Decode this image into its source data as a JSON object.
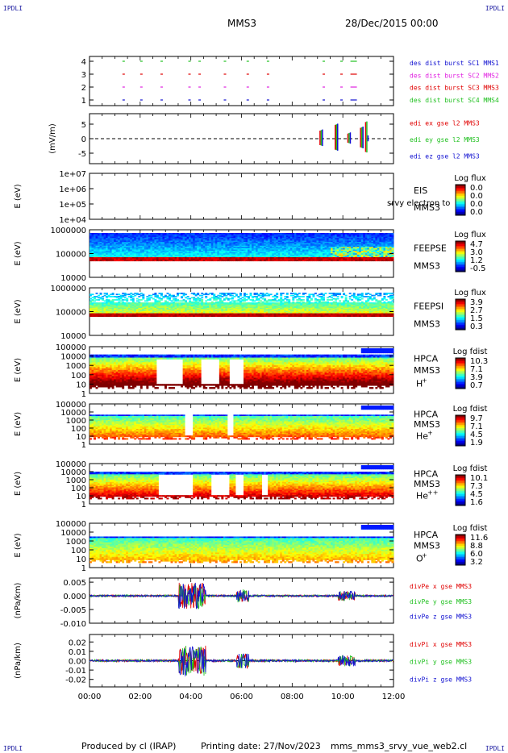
{
  "header": {
    "corner_tl": "IPDLI",
    "corner_tr": "IPDLI",
    "corner_bl": "IPDLI",
    "corner_br": "IPDLI",
    "spacecraft": "MMS3",
    "date": "28/Dec/2015 00:00"
  },
  "footer": {
    "produced": "Produced by cl (IRAP)",
    "printing": "Printing date: 27/Nov/2023",
    "file": "mms_mms3_srvy_vue_web2.cl"
  },
  "colors": {
    "red": "#e00000",
    "magenta": "#e020e0",
    "green": "#20c020",
    "blue": "#1010d0",
    "label_blue": "#1a1aa0"
  },
  "chart_data": [
    {
      "type": "scatter",
      "id": "burst",
      "yticks": [
        "1",
        "2",
        "3",
        "4"
      ],
      "ylim": [
        0.5,
        4.5
      ],
      "legend": [
        "des dist burst SC1 MMS1",
        "des dist burst SC2 MMS2",
        "des dist burst SC3 MMS3",
        "des dist burst SC4 MMS4"
      ],
      "legend_colors": [
        "#1010d0",
        "#e020e0",
        "#e00000",
        "#20c020"
      ],
      "x_hours": [
        1.3,
        2.0,
        2.8,
        3.9,
        4.3,
        5.3,
        6.2,
        7.0,
        9.2,
        9.9,
        10.3
      ]
    },
    {
      "type": "line",
      "id": "edi",
      "ylabel": "(mV/m)",
      "yticks": [
        "5",
        "0",
        "-5"
      ],
      "ylim": [
        -7,
        7
      ],
      "legend": [
        "edi ex gse l2 MMS3",
        "edi ey gse l2 MMS3",
        "edi ez gse l2 MMS3"
      ],
      "legend_colors": [
        "#e00000",
        "#20c020",
        "#1010d0"
      ],
      "activity_hours": [
        9.1,
        9.7,
        10.2,
        10.7,
        10.9
      ]
    },
    {
      "type": "heatmap",
      "id": "eis",
      "ylabel": "E (eV)",
      "yticks": [
        "1e+07",
        "1e+06",
        "1e+05",
        "1e+04"
      ],
      "instrument": "EIS",
      "spacecraft": "MMS3",
      "overlay_text": "srvy electron to",
      "colorbar_title": "Log flux",
      "colorbar_ticks": [
        "0.0",
        "0.0",
        "0.0",
        "0.0"
      ],
      "empty": true
    },
    {
      "type": "heatmap",
      "id": "feepse",
      "ylabel": "E (eV)",
      "yticks": [
        "1000000",
        "100000",
        "10000"
      ],
      "instrument": "FEEPSE",
      "spacecraft": "MMS3",
      "colorbar_title": "Log flux",
      "colorbar_ticks": [
        "4.7",
        "3.0",
        "1.2",
        "-0.5"
      ]
    },
    {
      "type": "heatmap",
      "id": "feepsi",
      "ylabel": "E (eV)",
      "yticks": [
        "1000000",
        "100000",
        "10000"
      ],
      "instrument": "FEEPSI",
      "spacecraft": "MMS3",
      "colorbar_title": "Log flux",
      "colorbar_ticks": [
        "3.9",
        "2.7",
        "1.5",
        "0.3"
      ]
    },
    {
      "type": "heatmap",
      "id": "hpca_h",
      "ylabel": "E (eV)",
      "yticks": [
        "100000",
        "10000",
        "1000",
        "100",
        "10",
        "1"
      ],
      "instrument": "HPCA",
      "spacecraft": "MMS3",
      "species": "H",
      "species_sup": "+",
      "colorbar_title": "Log fdist",
      "colorbar_ticks": [
        "10.3",
        "7.1",
        "3.9",
        "0.7"
      ]
    },
    {
      "type": "heatmap",
      "id": "hpca_he",
      "ylabel": "E (eV)",
      "yticks": [
        "100000",
        "10000",
        "1000",
        "100",
        "10",
        "1"
      ],
      "instrument": "HPCA",
      "spacecraft": "MMS3",
      "species": "He",
      "species_sup": "+",
      "colorbar_title": "Log fdist",
      "colorbar_ticks": [
        "9.7",
        "7.1",
        "4.5",
        "1.9"
      ]
    },
    {
      "type": "heatmap",
      "id": "hpca_hepp",
      "ylabel": "E (eV)",
      "yticks": [
        "100000",
        "10000",
        "1000",
        "100",
        "10",
        "1"
      ],
      "instrument": "HPCA",
      "spacecraft": "MMS3",
      "species": "He",
      "species_sup": "++",
      "colorbar_title": "Log fdist",
      "colorbar_ticks": [
        "10.1",
        "7.3",
        "4.5",
        "1.6"
      ]
    },
    {
      "type": "heatmap",
      "id": "hpca_o",
      "ylabel": "E (eV)",
      "yticks": [
        "100000",
        "10000",
        "1000",
        "100",
        "10",
        "1"
      ],
      "instrument": "HPCA",
      "spacecraft": "MMS3",
      "species": "O",
      "species_sup": "+",
      "colorbar_title": "Log fdist",
      "colorbar_ticks": [
        "11.6",
        "8.8",
        "6.0",
        "3.2"
      ]
    },
    {
      "type": "line",
      "id": "divpe",
      "ylabel": "(nPa/km)",
      "yticks": [
        "0.005",
        "0.000",
        "-0.005",
        "-0.010"
      ],
      "ylim": [
        -0.01,
        0.0065
      ],
      "legend": [
        "divPe x gse MMS3",
        "divPe y gse MMS3",
        "divPe z gse MMS3"
      ],
      "legend_colors": [
        "#e00000",
        "#20c020",
        "#1010d0"
      ]
    },
    {
      "type": "line",
      "id": "divpi",
      "ylabel": "(nPa/km)",
      "yticks": [
        "0.02",
        "0.01",
        "0.00",
        "-0.01",
        "-0.02"
      ],
      "ylim": [
        -0.028,
        0.028
      ],
      "legend": [
        "divPi x gse MMS3",
        "divPi y gse MMS3",
        "divPi z gse MMS3"
      ],
      "legend_colors": [
        "#e00000",
        "#20c020",
        "#1010d0"
      ]
    }
  ],
  "x_axis": {
    "ticks": [
      "00:00",
      "02:00",
      "04:00",
      "06:00",
      "08:00",
      "10:00",
      "12:00"
    ],
    "xlim_hours": [
      0,
      12
    ]
  }
}
